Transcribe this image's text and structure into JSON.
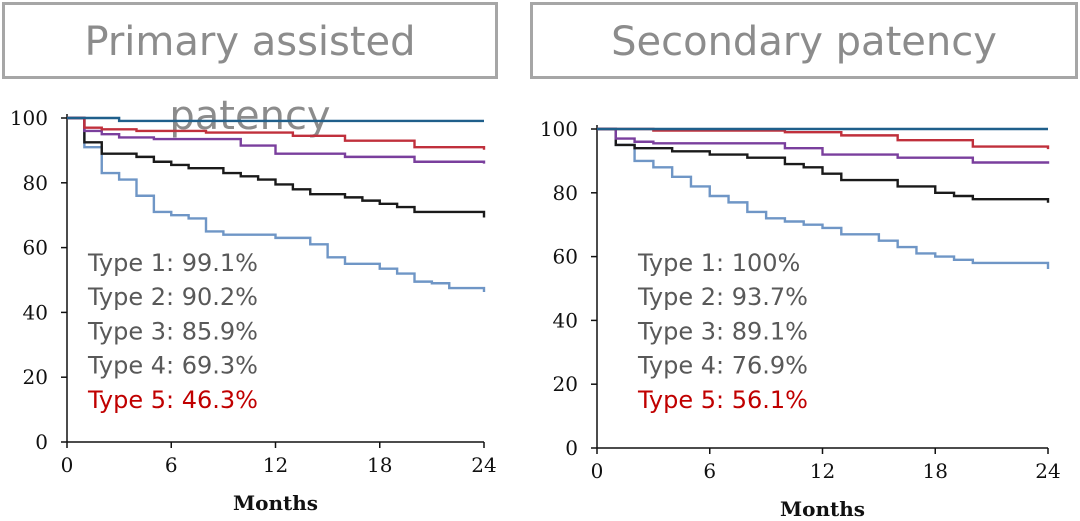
{
  "chart_data": [
    {
      "type": "line",
      "step": true,
      "title": "Primary assisted patency",
      "xlabel": "Months",
      "ylabel": "",
      "xlim": [
        0,
        24
      ],
      "ylim": [
        0,
        100
      ],
      "xticks": [
        0,
        6,
        12,
        18,
        24
      ],
      "yticks": [
        0,
        20,
        40,
        60,
        80,
        100
      ],
      "series": [
        {
          "name": "Type 1",
          "color": "#1f5f8b",
          "x": [
            0,
            3,
            24
          ],
          "y": [
            100,
            99.1,
            99.1
          ]
        },
        {
          "name": "Type 2",
          "color": "#c0303c",
          "x": [
            0,
            1,
            2,
            4,
            8,
            13,
            16,
            20,
            24
          ],
          "y": [
            100,
            97,
            96.5,
            96,
            95.5,
            94.5,
            93,
            91,
            90.2
          ]
        },
        {
          "name": "Type 3",
          "color": "#7a3f9d",
          "x": [
            0,
            1,
            2,
            3,
            5,
            10,
            12,
            16,
            20,
            24
          ],
          "y": [
            100,
            96,
            95,
            94,
            93.5,
            91.5,
            89,
            88,
            86.5,
            85.9
          ]
        },
        {
          "name": "Type 4",
          "color": "#1a1a1a",
          "x": [
            0,
            1,
            2,
            4,
            5,
            6,
            7,
            9,
            10,
            11,
            12,
            13,
            14,
            16,
            17,
            18,
            19,
            20,
            24
          ],
          "y": [
            100,
            92.5,
            89,
            88,
            86.5,
            85.5,
            84.5,
            83,
            82,
            81,
            79.5,
            78,
            76.5,
            75.5,
            74.5,
            73.5,
            72.5,
            71,
            69.3
          ]
        },
        {
          "name": "Type 5",
          "color": "#6f96c6",
          "x": [
            0,
            1,
            2,
            3,
            4,
            5,
            6,
            7,
            8,
            9,
            12,
            14,
            15,
            16,
            18,
            19,
            20,
            21,
            22,
            24
          ],
          "y": [
            100,
            91,
            83,
            81,
            76,
            71,
            70,
            69,
            65,
            64,
            63,
            61,
            57,
            55,
            53.5,
            52,
            49.5,
            49,
            47.5,
            46.3
          ]
        }
      ],
      "annotations": [
        {
          "text": "Type 1: 99.1%",
          "color": "#595959"
        },
        {
          "text": "Type 2: 90.2%",
          "color": "#595959"
        },
        {
          "text": "Type 3: 85.9%",
          "color": "#595959"
        },
        {
          "text": "Type 4: 69.3%",
          "color": "#595959"
        },
        {
          "text": "Type 5: 46.3%",
          "color": "#c00000"
        }
      ]
    },
    {
      "type": "line",
      "step": true,
      "title": "Secondary patency",
      "xlabel": "Months",
      "ylabel": "",
      "xlim": [
        0,
        24
      ],
      "ylim": [
        0,
        100
      ],
      "xticks": [
        0,
        6,
        12,
        18,
        24
      ],
      "yticks": [
        0,
        20,
        40,
        60,
        80,
        100
      ],
      "series": [
        {
          "name": "Type 1",
          "color": "#1f5f8b",
          "x": [
            0,
            24
          ],
          "y": [
            100,
            100
          ]
        },
        {
          "name": "Type 2",
          "color": "#c0303c",
          "x": [
            0,
            3,
            10,
            13,
            16,
            20,
            24
          ],
          "y": [
            100,
            99.5,
            99,
            98,
            96.5,
            94.5,
            93.7
          ]
        },
        {
          "name": "Type 3",
          "color": "#7a3f9d",
          "x": [
            0,
            1,
            2,
            3,
            10,
            12,
            16,
            20,
            24
          ],
          "y": [
            100,
            97,
            96,
            95.5,
            94,
            92,
            91,
            89.5,
            89.1
          ]
        },
        {
          "name": "Type 4",
          "color": "#1a1a1a",
          "x": [
            0,
            1,
            2,
            4,
            6,
            8,
            10,
            11,
            12,
            13,
            16,
            18,
            19,
            20,
            24
          ],
          "y": [
            100,
            95,
            94,
            93,
            92,
            91,
            89,
            88,
            86,
            84,
            82,
            80,
            79,
            78,
            76.9
          ]
        },
        {
          "name": "Type 5",
          "color": "#6f96c6",
          "x": [
            0,
            1,
            2,
            3,
            4,
            5,
            6,
            7,
            8,
            9,
            10,
            11,
            12,
            13,
            15,
            16,
            17,
            18,
            19,
            20,
            24
          ],
          "y": [
            100,
            95,
            90,
            88,
            85,
            82,
            79,
            77,
            74,
            72,
            71,
            70,
            69,
            67,
            65,
            63,
            61,
            60,
            59,
            58,
            56.1
          ]
        }
      ],
      "annotations": [
        {
          "text": "Type 1: 100%",
          "color": "#595959"
        },
        {
          "text": "Type 2: 93.7%",
          "color": "#595959"
        },
        {
          "text": "Type 3: 89.1%",
          "color": "#595959"
        },
        {
          "text": "Type 4: 76.9%",
          "color": "#595959"
        },
        {
          "text": "Type 5: 56.1%",
          "color": "#c00000"
        }
      ]
    }
  ]
}
